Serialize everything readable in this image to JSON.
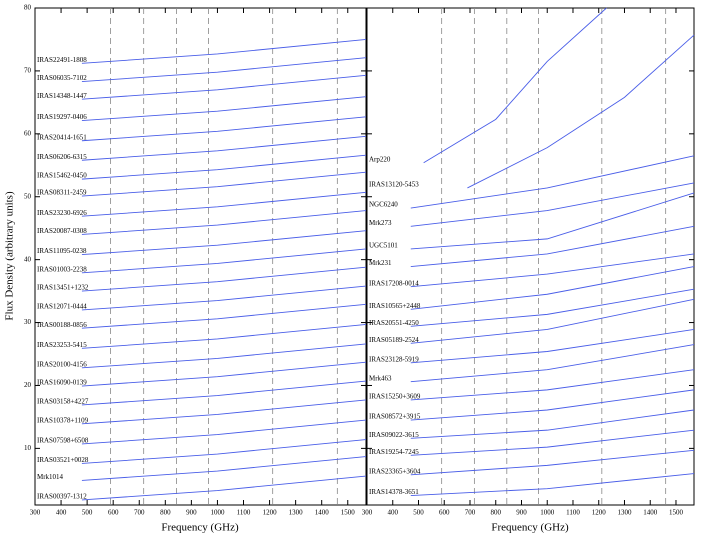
{
  "chart_data": [
    {
      "type": "line",
      "xlabel": "Frequency (GHz)",
      "ylabel": "Flux Density (arbitrary units)",
      "xlim": [
        300,
        1570
      ],
      "xticks": [
        300,
        400,
        500,
        600,
        700,
        800,
        900,
        1000,
        1100,
        1200,
        1300,
        1400,
        1500
      ],
      "ylim": [
        1,
        80
      ],
      "yticks": [
        10,
        20,
        30,
        40,
        50,
        60,
        70,
        80
      ],
      "vlines": [
        590,
        717,
        843,
        966,
        1212,
        1460
      ],
      "color": "#4a5ee8",
      "series": [
        {
          "name": "IRAS22491-1808",
          "x": [
            480,
            1000,
            1570
          ],
          "values": [
            71.2,
            72.7,
            75.0
          ]
        },
        {
          "name": "IRAS06035-7102",
          "x": [
            480,
            1000,
            1570
          ],
          "values": [
            68.3,
            69.8,
            72.1
          ]
        },
        {
          "name": "IRAS14348-1447",
          "x": [
            480,
            1000,
            1570
          ],
          "values": [
            65.5,
            67.0,
            69.3
          ]
        },
        {
          "name": "IRAS19297-0406",
          "x": [
            480,
            1000,
            1570
          ],
          "values": [
            62.1,
            63.6,
            65.9
          ]
        },
        {
          "name": "IRAS20414-1651",
          "x": [
            480,
            1000,
            1570
          ],
          "values": [
            58.9,
            60.4,
            62.7
          ]
        },
        {
          "name": "IRAS06206-6315",
          "x": [
            480,
            1000,
            1570
          ],
          "values": [
            55.8,
            57.3,
            59.6
          ]
        },
        {
          "name": "IRAS15462-0450",
          "x": [
            480,
            1000,
            1570
          ],
          "values": [
            52.8,
            54.3,
            56.6
          ]
        },
        {
          "name": "IRAS08311-2459",
          "x": [
            480,
            1000,
            1570
          ],
          "values": [
            50.1,
            51.6,
            53.9
          ]
        },
        {
          "name": "IRAS23230-6926",
          "x": [
            480,
            1000,
            1570
          ],
          "values": [
            46.9,
            48.4,
            50.7
          ]
        },
        {
          "name": "IRAS20087-0308",
          "x": [
            480,
            1000,
            1570
          ],
          "values": [
            44.0,
            45.5,
            47.8
          ]
        },
        {
          "name": "IRAS11095-0238",
          "x": [
            480,
            1000,
            1570
          ],
          "values": [
            40.8,
            42.3,
            44.6
          ]
        },
        {
          "name": "IRAS01003-2238",
          "x": [
            480,
            1000,
            1570
          ],
          "values": [
            37.9,
            39.4,
            41.7
          ]
        },
        {
          "name": "IRAS13451+1232",
          "x": [
            480,
            1000,
            1570
          ],
          "values": [
            35.0,
            36.5,
            38.8
          ]
        },
        {
          "name": "IRAS12071-0444",
          "x": [
            480,
            1000,
            1570
          ],
          "values": [
            32.0,
            33.5,
            35.8
          ]
        },
        {
          "name": "IRAS00188-0856",
          "x": [
            480,
            1000,
            1570
          ],
          "values": [
            29.1,
            30.6,
            32.9
          ]
        },
        {
          "name": "IRAS23253-5415",
          "x": [
            480,
            1000,
            1570
          ],
          "values": [
            25.9,
            27.4,
            29.7
          ]
        },
        {
          "name": "IRAS20100-4156",
          "x": [
            480,
            1000,
            1570
          ],
          "values": [
            22.8,
            24.3,
            26.6
          ]
        },
        {
          "name": "IRAS16090-0139",
          "x": [
            480,
            1000,
            1570
          ],
          "values": [
            19.9,
            21.4,
            23.7
          ]
        },
        {
          "name": "IRAS03158+4227",
          "x": [
            480,
            1000,
            1570
          ],
          "values": [
            16.9,
            18.4,
            20.7
          ]
        },
        {
          "name": "IRAS10378+1109",
          "x": [
            480,
            1000,
            1570
          ],
          "values": [
            13.9,
            15.4,
            17.7
          ]
        },
        {
          "name": "IRAS07598+6508",
          "x": [
            480,
            1000,
            1570
          ],
          "values": [
            10.7,
            12.2,
            14.5
          ]
        },
        {
          "name": "IRAS03521+0028",
          "x": [
            480,
            1000,
            1570
          ],
          "values": [
            7.6,
            9.1,
            11.4
          ]
        },
        {
          "name": "Mrk1014",
          "x": [
            480,
            1000,
            1570
          ],
          "values": [
            4.9,
            6.4,
            8.7
          ]
        },
        {
          "name": "IRAS00397-1312",
          "x": [
            480,
            1000,
            1570
          ],
          "values": [
            1.8,
            3.3,
            5.6
          ]
        }
      ]
    },
    {
      "type": "line",
      "xlabel": "Frequency (GHz)",
      "xlim": [
        300,
        1570
      ],
      "xticks": [
        300,
        400,
        500,
        600,
        700,
        800,
        900,
        1000,
        1100,
        1200,
        1300,
        1400,
        1500
      ],
      "ylim": [
        1,
        80
      ],
      "yticks": [
        10,
        20,
        30,
        40,
        50,
        60,
        70,
        80
      ],
      "vlines": [
        590,
        717,
        843,
        966,
        1212,
        1460
      ],
      "color": "#4a5ee8",
      "series": [
        {
          "name": "Arp220",
          "x": [
            520,
            800,
            1000,
            1230
          ],
          "values": [
            55.4,
            62.3,
            71.5,
            80
          ]
        },
        {
          "name": "IRAS13120-5453",
          "x": [
            690,
            1000,
            1300,
            1570
          ],
          "values": [
            51.4,
            57.8,
            65.8,
            75.7
          ]
        },
        {
          "name": "NGC6240",
          "x": [
            470,
            1000,
            1570
          ],
          "values": [
            48.2,
            51.4,
            56.5
          ]
        },
        {
          "name": "Mrk273",
          "x": [
            470,
            1000,
            1570
          ],
          "values": [
            45.3,
            47.8,
            52.2
          ]
        },
        {
          "name": "UGC5101",
          "x": [
            470,
            1000,
            1570
          ],
          "values": [
            41.7,
            43.3,
            50.6
          ]
        },
        {
          "name": "Mrk231",
          "x": [
            470,
            1000,
            1570
          ],
          "values": [
            38.9,
            40.9,
            45.3
          ]
        },
        {
          "name": "IRAS17208-0014",
          "x": [
            470,
            1000,
            1570
          ],
          "values": [
            35.7,
            37.7,
            40.9
          ]
        },
        {
          "name": "IRAS10565+2448",
          "x": [
            470,
            1000,
            1570
          ],
          "values": [
            32.1,
            34.5,
            38.9
          ]
        },
        {
          "name": "IRAS20551-4250",
          "x": [
            470,
            1000,
            1570
          ],
          "values": [
            29.4,
            31.3,
            35.3
          ]
        },
        {
          "name": "IRAS05189-2524",
          "x": [
            470,
            1000,
            1570
          ],
          "values": [
            26.7,
            28.9,
            33.7
          ]
        },
        {
          "name": "IRAS23128-5919",
          "x": [
            470,
            1000,
            1570
          ],
          "values": [
            23.6,
            25.4,
            28.9
          ]
        },
        {
          "name": "Mrk463",
          "x": [
            470,
            1000,
            1570
          ],
          "values": [
            20.6,
            22.5,
            26.5
          ]
        },
        {
          "name": "IRAS15250+3609",
          "x": [
            470,
            1000,
            1570
          ],
          "values": [
            17.7,
            19.3,
            22.5
          ]
        },
        {
          "name": "IRAS08572+3915",
          "x": [
            470,
            1000,
            1570
          ],
          "values": [
            14.5,
            16.1,
            19.3
          ]
        },
        {
          "name": "IRAS09022-3615",
          "x": [
            470,
            1000,
            1570
          ],
          "values": [
            11.6,
            12.9,
            16.1
          ]
        },
        {
          "name": "IRAS19254-7245",
          "x": [
            470,
            1000,
            1570
          ],
          "values": [
            8.9,
            10.2,
            12.9
          ]
        },
        {
          "name": "IRAS23365+3604",
          "x": [
            470,
            1000,
            1570
          ],
          "values": [
            5.8,
            7.3,
            9.7
          ]
        },
        {
          "name": "IRAS14378-3651",
          "x": [
            470,
            1000,
            1570
          ],
          "values": [
            2.5,
            3.6,
            6.0
          ]
        }
      ]
    }
  ]
}
